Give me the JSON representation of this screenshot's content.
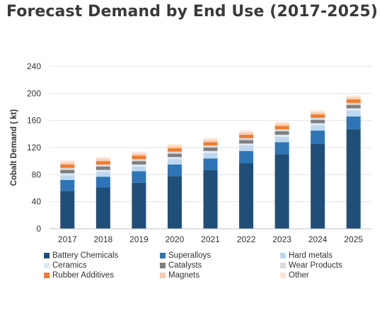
{
  "title": "Forecast Demand by End Use (2017-2025)",
  "chart_data": {
    "type": "bar",
    "stacked": true,
    "title": "",
    "xlabel": "",
    "ylabel": "Cobalt Demand ( kt)",
    "ylim": [
      0,
      240
    ],
    "yticks": [
      0,
      40,
      80,
      120,
      160,
      200,
      240
    ],
    "grid": true,
    "legend_position": "bottom",
    "categories": [
      "2017",
      "2018",
      "2019",
      "2020",
      "2021",
      "2022",
      "2023",
      "2024",
      "2025"
    ],
    "series": [
      {
        "name": "Battery Chemicals",
        "color": "#1f4e79",
        "values": [
          56,
          61,
          68,
          78,
          87,
          97,
          110,
          126,
          147
        ]
      },
      {
        "name": "Superalloys",
        "color": "#2e75b6",
        "values": [
          16,
          16,
          17,
          17,
          17,
          18,
          18,
          19,
          19
        ]
      },
      {
        "name": "Hard metals",
        "color": "#bdd7ee",
        "values": [
          7,
          7,
          7,
          8,
          8,
          8,
          8,
          8,
          9
        ]
      },
      {
        "name": "Ceramics",
        "color": "#deebf7",
        "values": [
          3,
          3,
          3,
          3,
          3,
          3,
          3,
          3,
          3
        ]
      },
      {
        "name": "Catalysts",
        "color": "#7f7f7f",
        "values": [
          5,
          5,
          5,
          5,
          5,
          5,
          5,
          5,
          5
        ]
      },
      {
        "name": "Wear Products",
        "color": "#d9d9d9",
        "values": [
          3,
          3,
          3,
          3,
          3,
          3,
          3,
          3,
          3
        ]
      },
      {
        "name": "Rubber Additives",
        "color": "#ed7d31",
        "values": [
          5,
          5,
          5,
          5,
          5,
          5,
          5,
          5,
          5
        ]
      },
      {
        "name": "Magnets",
        "color": "#f8cbad",
        "values": [
          3,
          3,
          3,
          3,
          3,
          3,
          3,
          3,
          3
        ]
      },
      {
        "name": "Other",
        "color": "#fbe5d6",
        "values": [
          3,
          3,
          3,
          3,
          3,
          3,
          3,
          3,
          3
        ]
      }
    ]
  }
}
